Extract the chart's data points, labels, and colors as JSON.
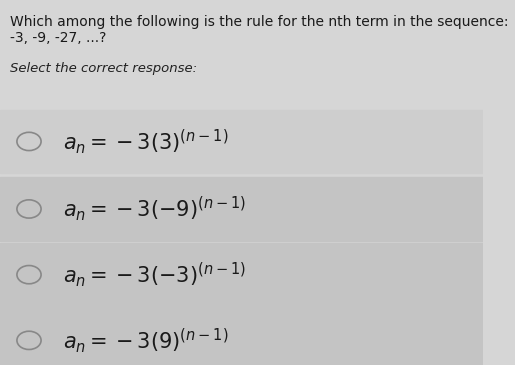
{
  "background_color": "#d6d6d6",
  "header_bg": "#c8c8c8",
  "question": "Which among the following is the rule for the nth term in the sequence: -3, -9, -27, ...?",
  "subheader": "Select the correct response:",
  "options": [
    {
      "label": "a",
      "math_main": "$a_n = -3(3)^{(n-1)}$"
    },
    {
      "label": "b",
      "math_main": "$a_n = -3(-9)^{(n-1)}$"
    },
    {
      "label": "c",
      "math_main": "$a_n = -3(-3)^{(n-1)}$"
    },
    {
      "label": "d",
      "math_main": "$a_n = -3(9)^{(n-1)}$"
    }
  ],
  "question_fontsize": 10,
  "subheader_fontsize": 9.5,
  "option_fontsize": 15,
  "text_color": "#1a1a1a",
  "subheader_color": "#222222",
  "option_row_colors": [
    "#d0d0d0",
    "#c8c8c8",
    "#c8c8c8",
    "#c8c8c8"
  ],
  "circle_color": "#888888",
  "fig_width": 5.15,
  "fig_height": 3.65
}
